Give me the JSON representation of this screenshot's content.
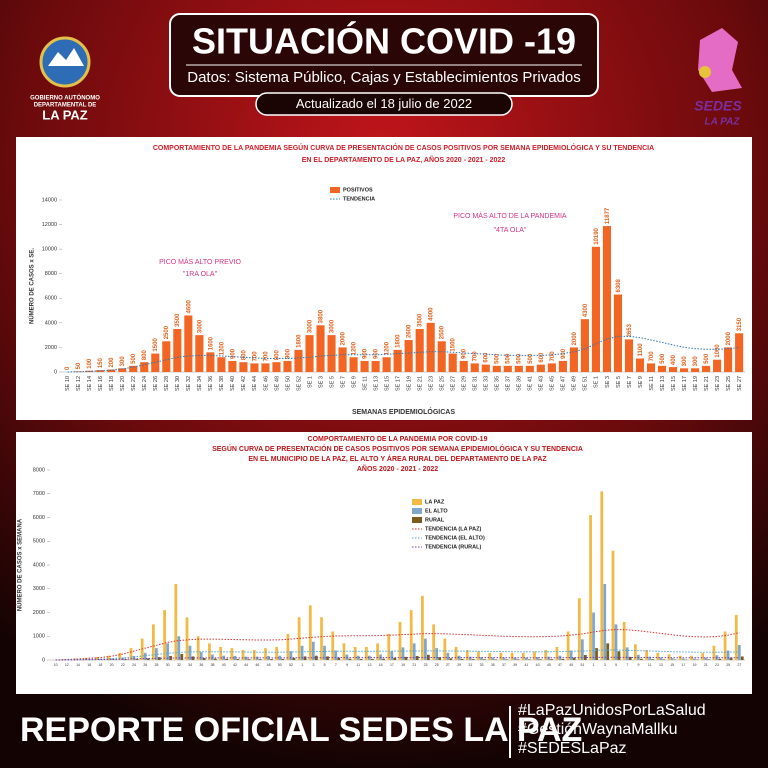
{
  "header": {
    "title": "SITUACIÓN COVID -19",
    "subtitle": "Datos: Sistema Público, Cajas y Establecimientos Privados",
    "updated": "Actualizado el  18  julio  de 2022",
    "left_logo": [
      "GOBIERNO AUTÓNOMO",
      "DEPARTAMENTAL DE",
      "LA PAZ"
    ],
    "right_logo": [
      "SEDES",
      "LA PAZ"
    ]
  },
  "footer": {
    "title": "REPORTE OFICIAL SEDES LA PAZ",
    "hashtags": [
      "#LaPazUnidosPorLaSalud",
      "#GestiónWaynaMallku",
      "#SEDESLaPaz"
    ]
  },
  "chart_data": [
    {
      "type": "bar",
      "title": [
        "COMPORTAMIENTO DE LA PANDEMIA SEGÚN CURVA DE PRESENTACIÓN DE CASOS POSITIVOS POR SEMANA EPIDEMIOLÓGICA Y SU TENDENCIA",
        "EN EL DEPARTAMENTO DE LA PAZ, AÑOS 2020 - 2021 - 2022"
      ],
      "y_label": "NÚMERO DE CASOS x SE.",
      "x_label": "SEMANAS EPIDEMIOLÓGICAS",
      "annotations": [
        "PICO MÁS ALTO PREVIO",
        "\"1RA OLA\"",
        "PICO MÁS ALTO DE LA PANDEMIA",
        "\"4TA OLA\""
      ],
      "categories": [
        "SE 10",
        "SE 12",
        "SE 14",
        "SE 16",
        "SE 18",
        "SE 20",
        "SE 22",
        "SE 24",
        "SE 26",
        "SE 28",
        "SE 30",
        "SE 32",
        "SE 34",
        "SE 36",
        "SE 38",
        "SE 40",
        "SE 42",
        "SE 44",
        "SE 46",
        "SE 48",
        "SE 50",
        "SE 52",
        "SE 1",
        "SE 3",
        "SE 5",
        "SE 7",
        "SE 9",
        "SE 11",
        "SE 13",
        "SE 15",
        "SE 17",
        "SE 19",
        "SE 21",
        "SE 23",
        "SE 25",
        "SE 27",
        "SE 29",
        "SE 31",
        "SE 33",
        "SE 35",
        "SE 37",
        "SE 39",
        "SE 41",
        "SE 43",
        "SE 45",
        "SE 47",
        "SE 49",
        "SE 51",
        "SE 1",
        "SE 3",
        "SE 5",
        "SE 7",
        "SE 9",
        "SE 11",
        "SE 13",
        "SE 15",
        "SE 17",
        "SE 19",
        "SE 21",
        "SE 23",
        "SE 25",
        "SE 27"
      ],
      "series": [
        {
          "name": "POSITIVOS",
          "kind": "bar",
          "color": "#f26522",
          "values": [
            0,
            50,
            100,
            150,
            200,
            300,
            500,
            800,
            1500,
            2500,
            3500,
            4600,
            3000,
            1600,
            1200,
            900,
            800,
            700,
            700,
            800,
            900,
            1800,
            3000,
            3800,
            3000,
            2000,
            1200,
            900,
            900,
            1200,
            1800,
            2600,
            3500,
            4000,
            2500,
            1500,
            900,
            700,
            600,
            500,
            500,
            500,
            500,
            600,
            700,
            900,
            2000,
            4300,
            10190,
            11877,
            6308,
            2653,
            1100,
            700,
            500,
            400,
            300,
            300,
            500,
            1000,
            2000,
            3150
          ]
        },
        {
          "name": "TENDENCIA",
          "kind": "line",
          "color": "#2e75b6",
          "dash": true,
          "values": [
            0,
            20,
            50,
            100,
            150,
            250,
            400,
            600,
            800,
            1000,
            1200,
            1300,
            1350,
            1350,
            1300,
            1250,
            1200,
            1150,
            1100,
            1100,
            1100,
            1150,
            1200,
            1300,
            1350,
            1400,
            1400,
            1400,
            1400,
            1450,
            1500,
            1550,
            1600,
            1650,
            1650,
            1600,
            1550,
            1500,
            1450,
            1400,
            1350,
            1350,
            1350,
            1350,
            1400,
            1500,
            1650,
            1900,
            2300,
            2700,
            2900,
            2900,
            2800,
            2600,
            2400,
            2200,
            2000,
            1900,
            1850,
            1850,
            1900,
            2000
          ]
        }
      ],
      "ylim": [
        0,
        14000
      ],
      "yticks": [
        0,
        2000,
        4000,
        6000,
        8000,
        10000,
        12000,
        14000
      ]
    },
    {
      "type": "bar",
      "title": [
        "COMPORTAMIENTO DE LA PANDEMIA POR COVID-19",
        "SEGÚN CURVA DE PRESENTACIÓN DE CASOS POSITIVOS POR SEMANA EPIDEMIOLÓGICA Y SU TENDENCIA",
        "EN EL  MUNICIPIO DE LA PAZ, EL ALTO Y ÁREA RURAL DEL DEPARTAMENTO DE LA PAZ",
        "AÑOS 2020 - 2021 - 2022"
      ],
      "y_label": "NÚMERO DE CASOS x SEMANA",
      "categories": [
        "10",
        "12",
        "14",
        "16",
        "18",
        "20",
        "22",
        "24",
        "26",
        "28",
        "30",
        "32",
        "34",
        "36",
        "38",
        "40",
        "42",
        "44",
        "46",
        "48",
        "50",
        "52",
        "1",
        "3",
        "5",
        "7",
        "9",
        "11",
        "13",
        "15",
        "17",
        "19",
        "21",
        "23",
        "25",
        "27",
        "29",
        "31",
        "33",
        "35",
        "37",
        "39",
        "41",
        "43",
        "45",
        "47",
        "49",
        "51",
        "1",
        "3",
        "5",
        "7",
        "9",
        "11",
        "13",
        "15",
        "17",
        "19",
        "21",
        "23",
        "25",
        "27"
      ],
      "series": [
        {
          "name": "LA PAZ",
          "kind": "bar",
          "color": "#f4b942",
          "values": [
            0,
            30,
            60,
            90,
            120,
            180,
            300,
            500,
            900,
            1500,
            2100,
            3200,
            1800,
            1000,
            700,
            550,
            500,
            420,
            420,
            500,
            550,
            1100,
            1800,
            2300,
            1800,
            1200,
            700,
            550,
            550,
            700,
            1100,
            1600,
            2100,
            2700,
            1500,
            900,
            550,
            420,
            360,
            300,
            300,
            300,
            300,
            360,
            420,
            550,
            1200,
            2600,
            6100,
            7100,
            4600,
            1600,
            660,
            420,
            300,
            240,
            180,
            180,
            300,
            600,
            1200,
            1900
          ]
        },
        {
          "name": "EL ALTO",
          "kind": "bar",
          "color": "#7fa7c9",
          "values": [
            0,
            10,
            20,
            30,
            40,
            60,
            100,
            170,
            300,
            500,
            700,
            1000,
            600,
            330,
            230,
            180,
            170,
            140,
            140,
            170,
            180,
            370,
            600,
            770,
            600,
            400,
            230,
            180,
            180,
            230,
            370,
            530,
            700,
            900,
            500,
            300,
            180,
            140,
            120,
            100,
            100,
            100,
            100,
            120,
            140,
            180,
            400,
            870,
            2000,
            3200,
            1500,
            530,
            220,
            140,
            100,
            80,
            60,
            60,
            100,
            200,
            400,
            630
          ]
        },
        {
          "name": "RURAL",
          "kind": "bar",
          "color": "#7a5c1e",
          "values": [
            0,
            3,
            5,
            8,
            10,
            15,
            25,
            40,
            70,
            120,
            170,
            250,
            150,
            80,
            55,
            45,
            40,
            35,
            35,
            40,
            45,
            90,
            150,
            180,
            150,
            100,
            55,
            45,
            45,
            55,
            90,
            130,
            170,
            220,
            120,
            70,
            45,
            35,
            30,
            25,
            25,
            25,
            25,
            30,
            35,
            45,
            100,
            210,
            500,
            700,
            370,
            130,
            50,
            35,
            25,
            20,
            15,
            15,
            25,
            50,
            100,
            150
          ]
        },
        {
          "name": "TENDENCIA (LA PAZ)",
          "kind": "line",
          "color": "#e03030",
          "dash": true,
          "values": [
            0,
            20,
            40,
            70,
            100,
            160,
            250,
            380,
            500,
            620,
            740,
            820,
            860,
            880,
            880,
            870,
            860,
            850,
            840,
            840,
            850,
            880,
            920,
            960,
            990,
            1010,
            1020,
            1020,
            1020,
            1030,
            1050,
            1070,
            1090,
            1110,
            1110,
            1100,
            1080,
            1060,
            1040,
            1020,
            1000,
            990,
            980,
            980,
            990,
            1010,
            1050,
            1100,
            1180,
            1250,
            1280,
            1270,
            1230,
            1180,
            1120,
            1060,
            1010,
            980,
            970,
            990,
            1050,
            1150
          ]
        },
        {
          "name": "TENDENCIA (EL ALTO)",
          "kind": "line",
          "color": "#4fa3d9",
          "dash": true,
          "values": [
            0,
            10,
            20,
            30,
            40,
            60,
            90,
            130,
            180,
            230,
            280,
            320,
            340,
            350,
            350,
            345,
            340,
            335,
            330,
            330,
            330,
            335,
            345,
            355,
            360,
            365,
            365,
            365,
            365,
            365,
            370,
            375,
            380,
            385,
            385,
            380,
            375,
            370,
            365,
            360,
            355,
            350,
            350,
            350,
            350,
            355,
            365,
            380,
            400,
            420,
            420,
            410,
            395,
            380,
            365,
            350,
            340,
            330,
            325,
            325,
            330,
            340
          ]
        },
        {
          "name": "TENDENCIA (RURAL)",
          "kind": "line",
          "color": "#7b3f9e",
          "dash": true,
          "values": [
            0,
            5,
            10,
            15,
            20,
            25,
            35,
            50,
            60,
            70,
            80,
            85,
            88,
            90,
            90,
            90,
            90,
            90,
            90,
            90,
            90,
            92,
            95,
            97,
            98,
            99,
            100,
            100,
            100,
            100,
            101,
            102,
            103,
            104,
            104,
            103,
            102,
            101,
            100,
            99,
            98,
            97,
            97,
            97,
            97,
            98,
            100,
            103,
            108,
            112,
            112,
            110,
            107,
            104,
            101,
            98,
            96,
            94,
            93,
            93,
            94,
            96
          ]
        }
      ],
      "ylim": [
        0,
        8000
      ],
      "yticks": [
        0,
        1000,
        2000,
        3000,
        4000,
        5000,
        6000,
        7000,
        8000
      ]
    }
  ]
}
